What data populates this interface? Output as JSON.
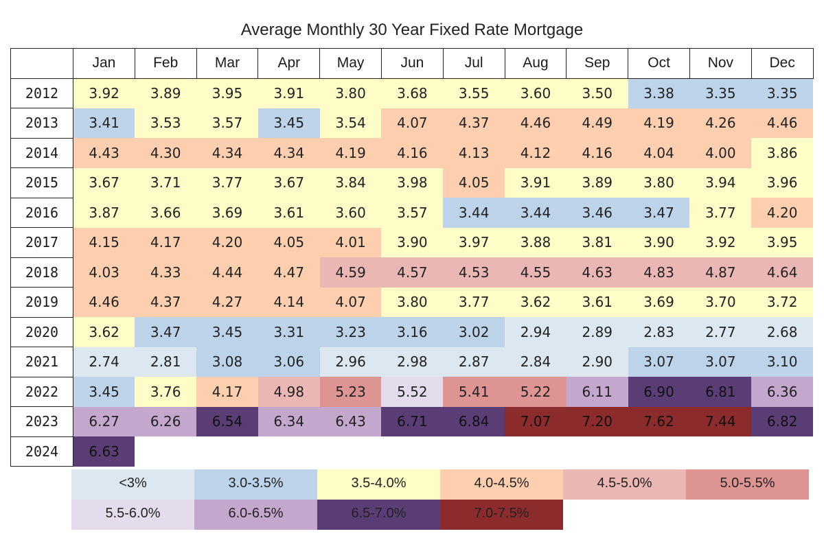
{
  "chart_data": {
    "type": "heatmap",
    "title": "Average Monthly 30 Year Fixed Rate Mortgage",
    "columns": [
      "Jan",
      "Feb",
      "Mar",
      "Apr",
      "May",
      "Jun",
      "Jul",
      "Aug",
      "Sep",
      "Oct",
      "Nov",
      "Dec"
    ],
    "rows": [
      {
        "year": "2012",
        "values": [
          "3.92",
          "3.89",
          "3.95",
          "3.91",
          "3.80",
          "3.68",
          "3.55",
          "3.60",
          "3.50",
          "3.38",
          "3.35",
          "3.35"
        ]
      },
      {
        "year": "2013",
        "values": [
          "3.41",
          "3.53",
          "3.57",
          "3.45",
          "3.54",
          "4.07",
          "4.37",
          "4.46",
          "4.49",
          "4.19",
          "4.26",
          "4.46"
        ]
      },
      {
        "year": "2014",
        "values": [
          "4.43",
          "4.30",
          "4.34",
          "4.34",
          "4.19",
          "4.16",
          "4.13",
          "4.12",
          "4.16",
          "4.04",
          "4.00",
          "3.86"
        ]
      },
      {
        "year": "2015",
        "values": [
          "3.67",
          "3.71",
          "3.77",
          "3.67",
          "3.84",
          "3.98",
          "4.05",
          "3.91",
          "3.89",
          "3.80",
          "3.94",
          "3.96"
        ]
      },
      {
        "year": "2016",
        "values": [
          "3.87",
          "3.66",
          "3.69",
          "3.61",
          "3.60",
          "3.57",
          "3.44",
          "3.44",
          "3.46",
          "3.47",
          "3.77",
          "4.20"
        ]
      },
      {
        "year": "2017",
        "values": [
          "4.15",
          "4.17",
          "4.20",
          "4.05",
          "4.01",
          "3.90",
          "3.97",
          "3.88",
          "3.81",
          "3.90",
          "3.92",
          "3.95"
        ]
      },
      {
        "year": "2018",
        "values": [
          "4.03",
          "4.33",
          "4.44",
          "4.47",
          "4.59",
          "4.57",
          "4.53",
          "4.55",
          "4.63",
          "4.83",
          "4.87",
          "4.64"
        ]
      },
      {
        "year": "2019",
        "values": [
          "4.46",
          "4.37",
          "4.27",
          "4.14",
          "4.07",
          "3.80",
          "3.77",
          "3.62",
          "3.61",
          "3.69",
          "3.70",
          "3.72"
        ]
      },
      {
        "year": "2020",
        "values": [
          "3.62",
          "3.47",
          "3.45",
          "3.31",
          "3.23",
          "3.16",
          "3.02",
          "2.94",
          "2.89",
          "2.83",
          "2.77",
          "2.68"
        ]
      },
      {
        "year": "2021",
        "values": [
          "2.74",
          "2.81",
          "3.08",
          "3.06",
          "2.96",
          "2.98",
          "2.87",
          "2.84",
          "2.90",
          "3.07",
          "3.07",
          "3.10"
        ]
      },
      {
        "year": "2022",
        "values": [
          "3.45",
          "3.76",
          "4.17",
          "4.98",
          "5.23",
          "5.52",
          "5.41",
          "5.22",
          "6.11",
          "6.90",
          "6.81",
          "6.36"
        ]
      },
      {
        "year": "2023",
        "values": [
          "6.27",
          "6.26",
          "6.54",
          "6.34",
          "6.43",
          "6.71",
          "6.84",
          "7.07",
          "7.20",
          "7.62",
          "7.44",
          "6.82"
        ]
      },
      {
        "year": "2024",
        "values": [
          "6.63"
        ]
      }
    ],
    "legend": [
      {
        "label": "<3%",
        "min": 0,
        "max": 3.0,
        "color": "#dde7f0",
        "text_color": "#222222"
      },
      {
        "label": "3.0-3.5%",
        "min": 3.0,
        "max": 3.5,
        "color": "#bdd3ea",
        "text_color": "#222222"
      },
      {
        "label": "3.5-4.0%",
        "min": 3.5,
        "max": 4.0,
        "color": "#fefdc8",
        "text_color": "#222222"
      },
      {
        "label": "4.0-4.5%",
        "min": 4.0,
        "max": 4.5,
        "color": "#fdcfae",
        "text_color": "#222222"
      },
      {
        "label": "4.5-5.0%",
        "min": 4.5,
        "max": 5.0,
        "color": "#eab7b5",
        "text_color": "#222222"
      },
      {
        "label": "5.0-5.5%",
        "min": 5.0,
        "max": 5.5,
        "color": "#df9494",
        "text_color": "#222222"
      },
      {
        "label": "5.5-6.0%",
        "min": 5.5,
        "max": 6.0,
        "color": "#e4dcec",
        "text_color": "#222222"
      },
      {
        "label": "6.0-6.5%",
        "min": 6.0,
        "max": 6.5,
        "color": "#c3a7cd",
        "text_color": "#222222"
      },
      {
        "label": "6.5-7.0%",
        "min": 6.5,
        "max": 7.0,
        "color": "#5a3d74",
        "text_color": "#111111"
      },
      {
        "label": "7.0-7.5%",
        "min": 7.0,
        "max": 7.5,
        "color": "#8c2b2b",
        "text_color": "#111111"
      },
      {
        "label": "",
        "min": 7.5,
        "max": 8.0,
        "color": "#8c2b2b",
        "text_color": "#111111",
        "hidden": true
      }
    ]
  }
}
